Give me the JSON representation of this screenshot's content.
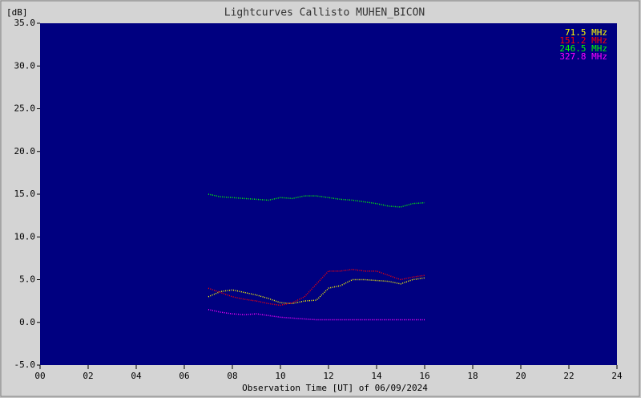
{
  "chart_data": {
    "type": "line",
    "title": "Lightcurves Callisto MUHEN_BICON",
    "y_label": "[dB]",
    "x_label": "Observation Time [UT] of 06/09/2024",
    "x": [
      7,
      7.5,
      8,
      8.5,
      9,
      9.5,
      10,
      10.5,
      11,
      11.5,
      12,
      12.5,
      13,
      13.5,
      14,
      14.5,
      15,
      15.5,
      16
    ],
    "series": [
      {
        "name": "71.5 MHz",
        "color": "#ffff00",
        "values": [
          3.0,
          3.6,
          3.8,
          3.5,
          3.2,
          2.8,
          2.3,
          2.2,
          2.5,
          2.6,
          4.0,
          4.3,
          5.0,
          5.0,
          4.9,
          4.8,
          4.5,
          5.0,
          5.2
        ]
      },
      {
        "name": "151.2 MHz",
        "color": "#ff0000",
        "values": [
          4.0,
          3.5,
          3.0,
          2.7,
          2.5,
          2.2,
          2.0,
          2.3,
          3.0,
          4.5,
          6.0,
          6.0,
          6.2,
          6.0,
          6.0,
          5.5,
          5.0,
          5.3,
          5.5
        ]
      },
      {
        "name": "246.5 MHz",
        "color": "#00ff00",
        "values": [
          15.0,
          14.7,
          14.6,
          14.5,
          14.4,
          14.3,
          14.6,
          14.5,
          14.8,
          14.8,
          14.6,
          14.4,
          14.3,
          14.1,
          13.9,
          13.6,
          13.5,
          13.9,
          14.0
        ]
      },
      {
        "name": "327.8 MHz",
        "color": "#ff00ff",
        "values": [
          1.5,
          1.2,
          1.0,
          0.9,
          1.0,
          0.8,
          0.6,
          0.5,
          0.4,
          0.3,
          0.3,
          0.3,
          0.3,
          0.3,
          0.3,
          0.3,
          0.3,
          0.3,
          0.3
        ]
      }
    ],
    "xlim": [
      0,
      24
    ],
    "xticks": [
      {
        "value": 0,
        "label": "00"
      },
      {
        "value": 2,
        "label": "02"
      },
      {
        "value": 4,
        "label": "04"
      },
      {
        "value": 6,
        "label": "06"
      },
      {
        "value": 8,
        "label": "08"
      },
      {
        "value": 10,
        "label": "10"
      },
      {
        "value": 12,
        "label": "12"
      },
      {
        "value": 14,
        "label": "14"
      },
      {
        "value": 16,
        "label": "16"
      },
      {
        "value": 18,
        "label": "18"
      },
      {
        "value": 20,
        "label": "20"
      },
      {
        "value": 22,
        "label": "22"
      },
      {
        "value": 24,
        "label": "24"
      }
    ],
    "ylim": [
      -5,
      35
    ],
    "yticks": [
      {
        "value": -5,
        "label": "-5.0"
      },
      {
        "value": 0,
        "label": "0.0"
      },
      {
        "value": 5,
        "label": "5.0"
      },
      {
        "value": 10,
        "label": "10.0"
      },
      {
        "value": 15,
        "label": "15.0"
      },
      {
        "value": 20,
        "label": "20.0"
      },
      {
        "value": 25,
        "label": "25.0"
      },
      {
        "value": 30,
        "label": "30.0"
      },
      {
        "value": 35,
        "label": "35.0"
      }
    ]
  }
}
